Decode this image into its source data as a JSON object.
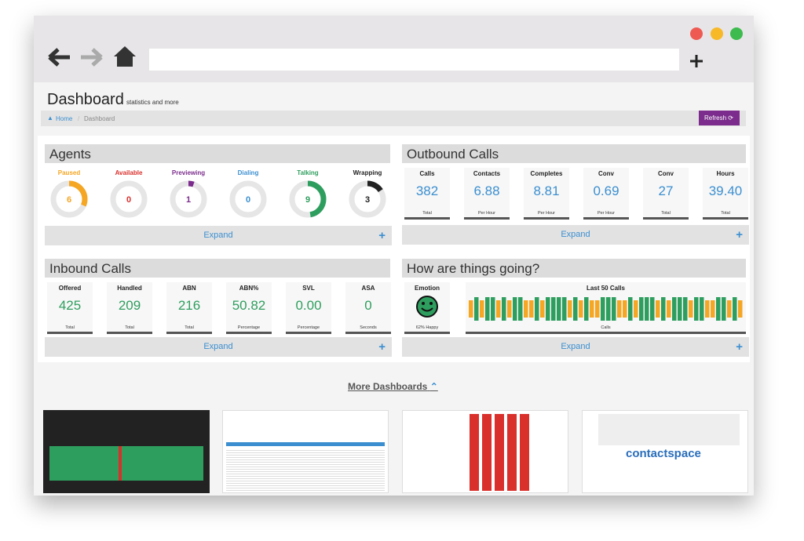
{
  "header": {
    "title": "Dashboard",
    "subtitle": "statistics and more"
  },
  "breadcrumb": {
    "items": [
      "Home",
      "Dashboard"
    ],
    "refresh": "Refresh"
  },
  "agents": {
    "title": "Agents",
    "items": [
      {
        "label": "Paused",
        "value": 6,
        "color": "#f5a623"
      },
      {
        "label": "Available",
        "value": 0,
        "color": "#d9302c"
      },
      {
        "label": "Previewing",
        "value": 1,
        "color": "#7b2c8c"
      },
      {
        "label": "Dialing",
        "value": 0,
        "color": "#3b8fd0"
      },
      {
        "label": "Talking",
        "value": 9,
        "color": "#2e9e5e"
      },
      {
        "label": "Wrapping",
        "value": 3,
        "color": "#222222"
      }
    ],
    "expand": "Expand"
  },
  "outbound": {
    "title": "Outbound Calls",
    "color": "#3b8fd0",
    "items": [
      {
        "label": "Calls",
        "value": "382",
        "unit": "Total"
      },
      {
        "label": "Contacts",
        "value": "6.88",
        "unit": "Per Hour"
      },
      {
        "label": "Completes",
        "value": "8.81",
        "unit": "Per Hour"
      },
      {
        "label": "Conv",
        "value": "0.69",
        "unit": "Per Hour"
      },
      {
        "label": "Conv",
        "value": "27",
        "unit": "Total"
      },
      {
        "label": "Hours",
        "value": "39.40",
        "unit": "Total"
      }
    ],
    "expand": "Expand"
  },
  "inbound": {
    "title": "Inbound Calls",
    "color": "#2e9e5e",
    "items": [
      {
        "label": "Offered",
        "value": "425",
        "unit": "Total"
      },
      {
        "label": "Handled",
        "value": "209",
        "unit": "Total"
      },
      {
        "label": "ABN",
        "value": "216",
        "unit": "Total"
      },
      {
        "label": "ABN%",
        "value": "50.82",
        "unit": "Percentage"
      },
      {
        "label": "SVL",
        "value": "0.00",
        "unit": "Percentage"
      },
      {
        "label": "ASA",
        "value": "0",
        "unit": "Seconds"
      }
    ],
    "expand": "Expand"
  },
  "mood": {
    "title": "How are things going?",
    "emotion_label": "Emotion",
    "emotion_caption": "62% Happy",
    "calls_label": "Last 50 Calls",
    "calls_caption": "Calls",
    "expand": "Expand"
  },
  "more": {
    "link": "More Dashboards",
    "logo": "contactspace"
  }
}
